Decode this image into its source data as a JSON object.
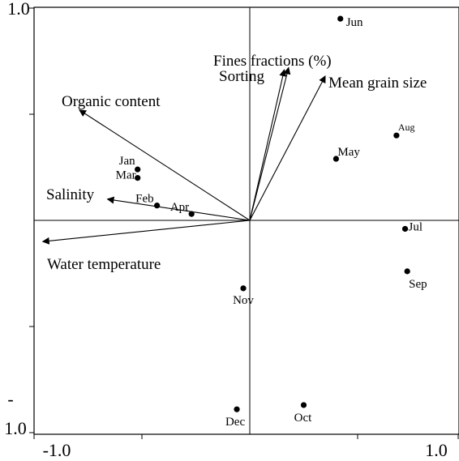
{
  "chart_data": {
    "type": "scatter",
    "title": "",
    "xlabel": "",
    "ylabel": "",
    "xlim": [
      -1.0,
      1.0
    ],
    "ylim": [
      -1.0,
      1.0
    ],
    "grid": false,
    "legend": "none",
    "x_ticks": [
      {
        "value": -1.0,
        "label": "-1.0"
      },
      {
        "value": 1.0,
        "label": "1.0"
      }
    ],
    "y_ticks": [
      {
        "value": 1.0,
        "label": "1.0"
      },
      {
        "value": -1.0,
        "label": "-1.0"
      }
    ],
    "minor_ticks": [
      -0.5,
      0.5
    ],
    "points": [
      {
        "name": "Jan",
        "x": -0.52,
        "y": 0.24
      },
      {
        "name": "Mar",
        "x": -0.52,
        "y": 0.2
      },
      {
        "name": "Feb",
        "x": -0.43,
        "y": 0.07
      },
      {
        "name": "Apr",
        "x": -0.27,
        "y": 0.03
      },
      {
        "name": "Jun",
        "x": 0.42,
        "y": 0.95
      },
      {
        "name": "May",
        "x": 0.4,
        "y": 0.29
      },
      {
        "name": "Aug",
        "x": 0.68,
        "y": 0.4
      },
      {
        "name": "Jul",
        "x": 0.72,
        "y": -0.04
      },
      {
        "name": "Sep",
        "x": 0.73,
        "y": -0.24
      },
      {
        "name": "Nov",
        "x": -0.03,
        "y": -0.32
      },
      {
        "name": "Dec",
        "x": -0.06,
        "y": -0.89
      },
      {
        "name": "Oct",
        "x": 0.25,
        "y": -0.87
      }
    ],
    "vectors": [
      {
        "name": "Fines fractions (%)",
        "x": 0.18,
        "y": 0.72
      },
      {
        "name": "Sorting",
        "x": 0.16,
        "y": 0.71
      },
      {
        "name": "Mean grain size",
        "x": 0.35,
        "y": 0.68
      },
      {
        "name": "Organic content",
        "x": -0.79,
        "y": 0.52
      },
      {
        "name": "Salinity",
        "x": -0.66,
        "y": 0.1
      },
      {
        "name": "Water temperature",
        "x": -0.96,
        "y": -0.1
      }
    ]
  }
}
